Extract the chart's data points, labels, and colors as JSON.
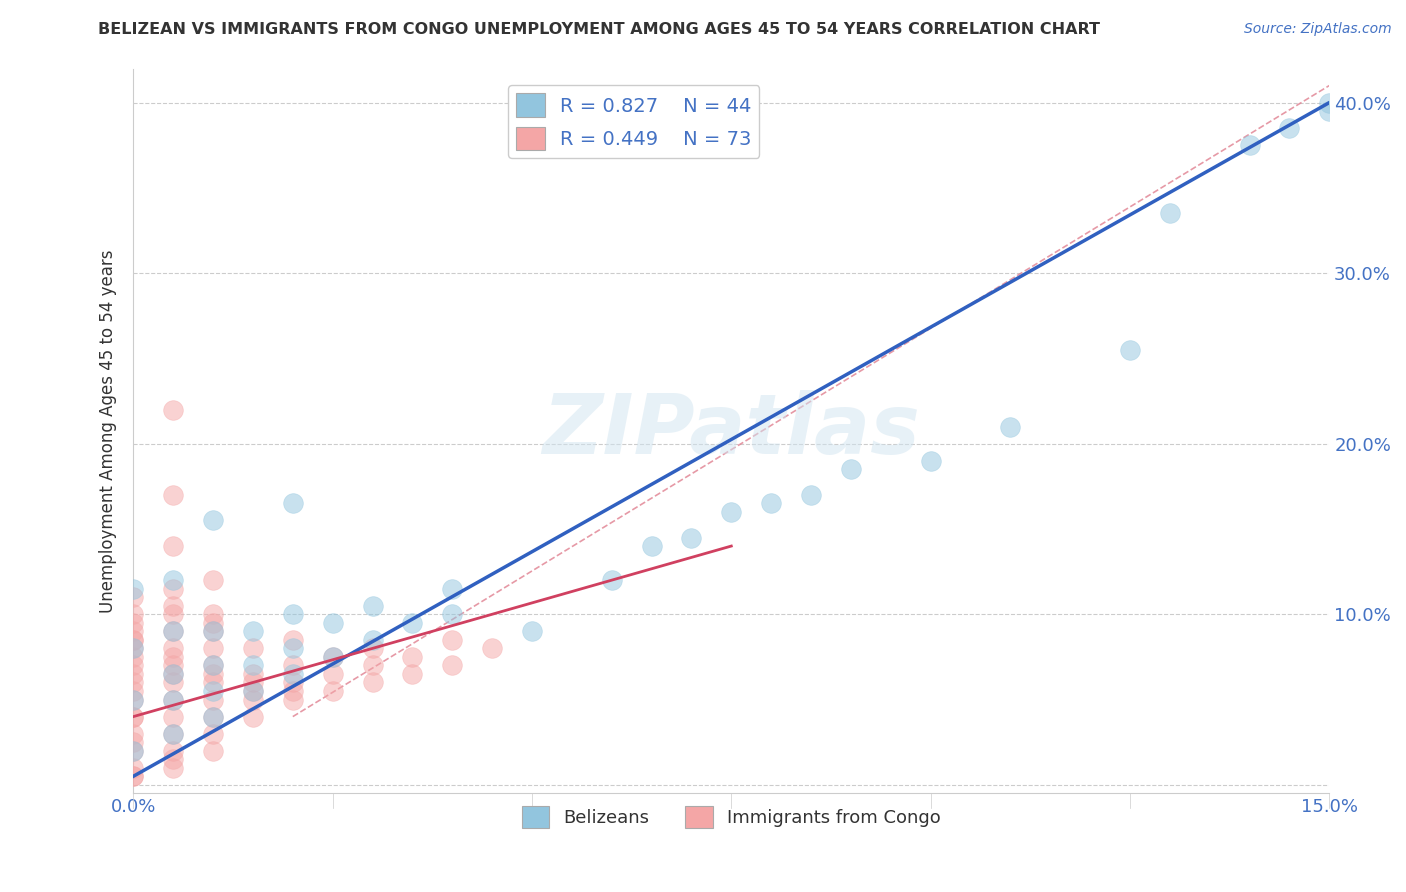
{
  "title": "BELIZEAN VS IMMIGRANTS FROM CONGO UNEMPLOYMENT AMONG AGES 45 TO 54 YEARS CORRELATION CHART",
  "source": "Source: ZipAtlas.com",
  "ylabel": "Unemployment Among Ages 45 to 54 years",
  "xlim": [
    0.0,
    0.15
  ],
  "ylim": [
    -0.005,
    0.42
  ],
  "xticks": [
    0.0,
    0.025,
    0.05,
    0.075,
    0.1,
    0.125,
    0.15
  ],
  "xtick_labels": [
    "0.0%",
    "",
    "",
    "",
    "",
    "",
    "15.0%"
  ],
  "yticks": [
    0.0,
    0.1,
    0.2,
    0.3,
    0.4
  ],
  "ytick_labels": [
    "",
    "10.0%",
    "20.0%",
    "30.0%",
    "40.0%"
  ],
  "watermark": "ZIPatlas",
  "legend_blue_r": "R = 0.827",
  "legend_blue_n": "N = 44",
  "legend_pink_r": "R = 0.449",
  "legend_pink_n": "N = 73",
  "blue_color": "#92c5de",
  "pink_color": "#f4a6a6",
  "blue_line_color": "#3060c0",
  "pink_line_color": "#d04060",
  "dash_color": "#e08090",
  "blue_scatter_x": [
    0.0,
    0.0,
    0.0,
    0.005,
    0.005,
    0.005,
    0.005,
    0.01,
    0.01,
    0.01,
    0.01,
    0.015,
    0.015,
    0.015,
    0.02,
    0.02,
    0.02,
    0.025,
    0.025,
    0.03,
    0.03,
    0.035,
    0.04,
    0.04,
    0.05,
    0.06,
    0.065,
    0.07,
    0.075,
    0.08,
    0.085,
    0.09,
    0.1,
    0.11,
    0.125,
    0.13,
    0.14,
    0.145,
    0.15,
    0.15,
    0.005,
    0.0,
    0.01,
    0.02
  ],
  "blue_scatter_y": [
    0.02,
    0.05,
    0.08,
    0.03,
    0.05,
    0.065,
    0.09,
    0.04,
    0.055,
    0.07,
    0.09,
    0.055,
    0.07,
    0.09,
    0.065,
    0.08,
    0.1,
    0.075,
    0.095,
    0.085,
    0.105,
    0.095,
    0.1,
    0.115,
    0.09,
    0.12,
    0.14,
    0.145,
    0.16,
    0.165,
    0.17,
    0.185,
    0.19,
    0.21,
    0.255,
    0.335,
    0.375,
    0.385,
    0.395,
    0.4,
    0.12,
    0.115,
    0.155,
    0.165
  ],
  "pink_scatter_x": [
    0.0,
    0.0,
    0.0,
    0.0,
    0.0,
    0.0,
    0.0,
    0.0,
    0.0,
    0.0,
    0.0,
    0.0,
    0.005,
    0.005,
    0.005,
    0.005,
    0.005,
    0.005,
    0.005,
    0.005,
    0.005,
    0.005,
    0.005,
    0.005,
    0.005,
    0.005,
    0.01,
    0.01,
    0.01,
    0.01,
    0.01,
    0.01,
    0.01,
    0.01,
    0.01,
    0.01,
    0.015,
    0.015,
    0.015,
    0.015,
    0.015,
    0.015,
    0.02,
    0.02,
    0.02,
    0.02,
    0.02,
    0.025,
    0.025,
    0.025,
    0.03,
    0.03,
    0.03,
    0.035,
    0.035,
    0.04,
    0.04,
    0.045,
    0.005,
    0.005,
    0.01,
    0.005,
    0.01,
    0.0,
    0.0,
    0.0,
    0.0,
    0.0,
    0.0,
    0.005,
    0.0,
    0.0,
    0.0
  ],
  "pink_scatter_y": [
    0.005,
    0.01,
    0.02,
    0.03,
    0.04,
    0.05,
    0.06,
    0.065,
    0.07,
    0.075,
    0.08,
    0.085,
    0.01,
    0.02,
    0.03,
    0.04,
    0.05,
    0.06,
    0.065,
    0.07,
    0.075,
    0.08,
    0.09,
    0.1,
    0.17,
    0.22,
    0.02,
    0.03,
    0.04,
    0.05,
    0.06,
    0.065,
    0.07,
    0.08,
    0.09,
    0.1,
    0.04,
    0.05,
    0.055,
    0.06,
    0.065,
    0.08,
    0.05,
    0.055,
    0.06,
    0.07,
    0.085,
    0.055,
    0.065,
    0.075,
    0.06,
    0.07,
    0.08,
    0.065,
    0.075,
    0.07,
    0.085,
    0.08,
    0.115,
    0.14,
    0.12,
    0.105,
    0.095,
    0.09,
    0.085,
    0.095,
    0.1,
    0.11,
    0.005,
    0.015,
    0.025,
    0.04,
    0.055
  ]
}
